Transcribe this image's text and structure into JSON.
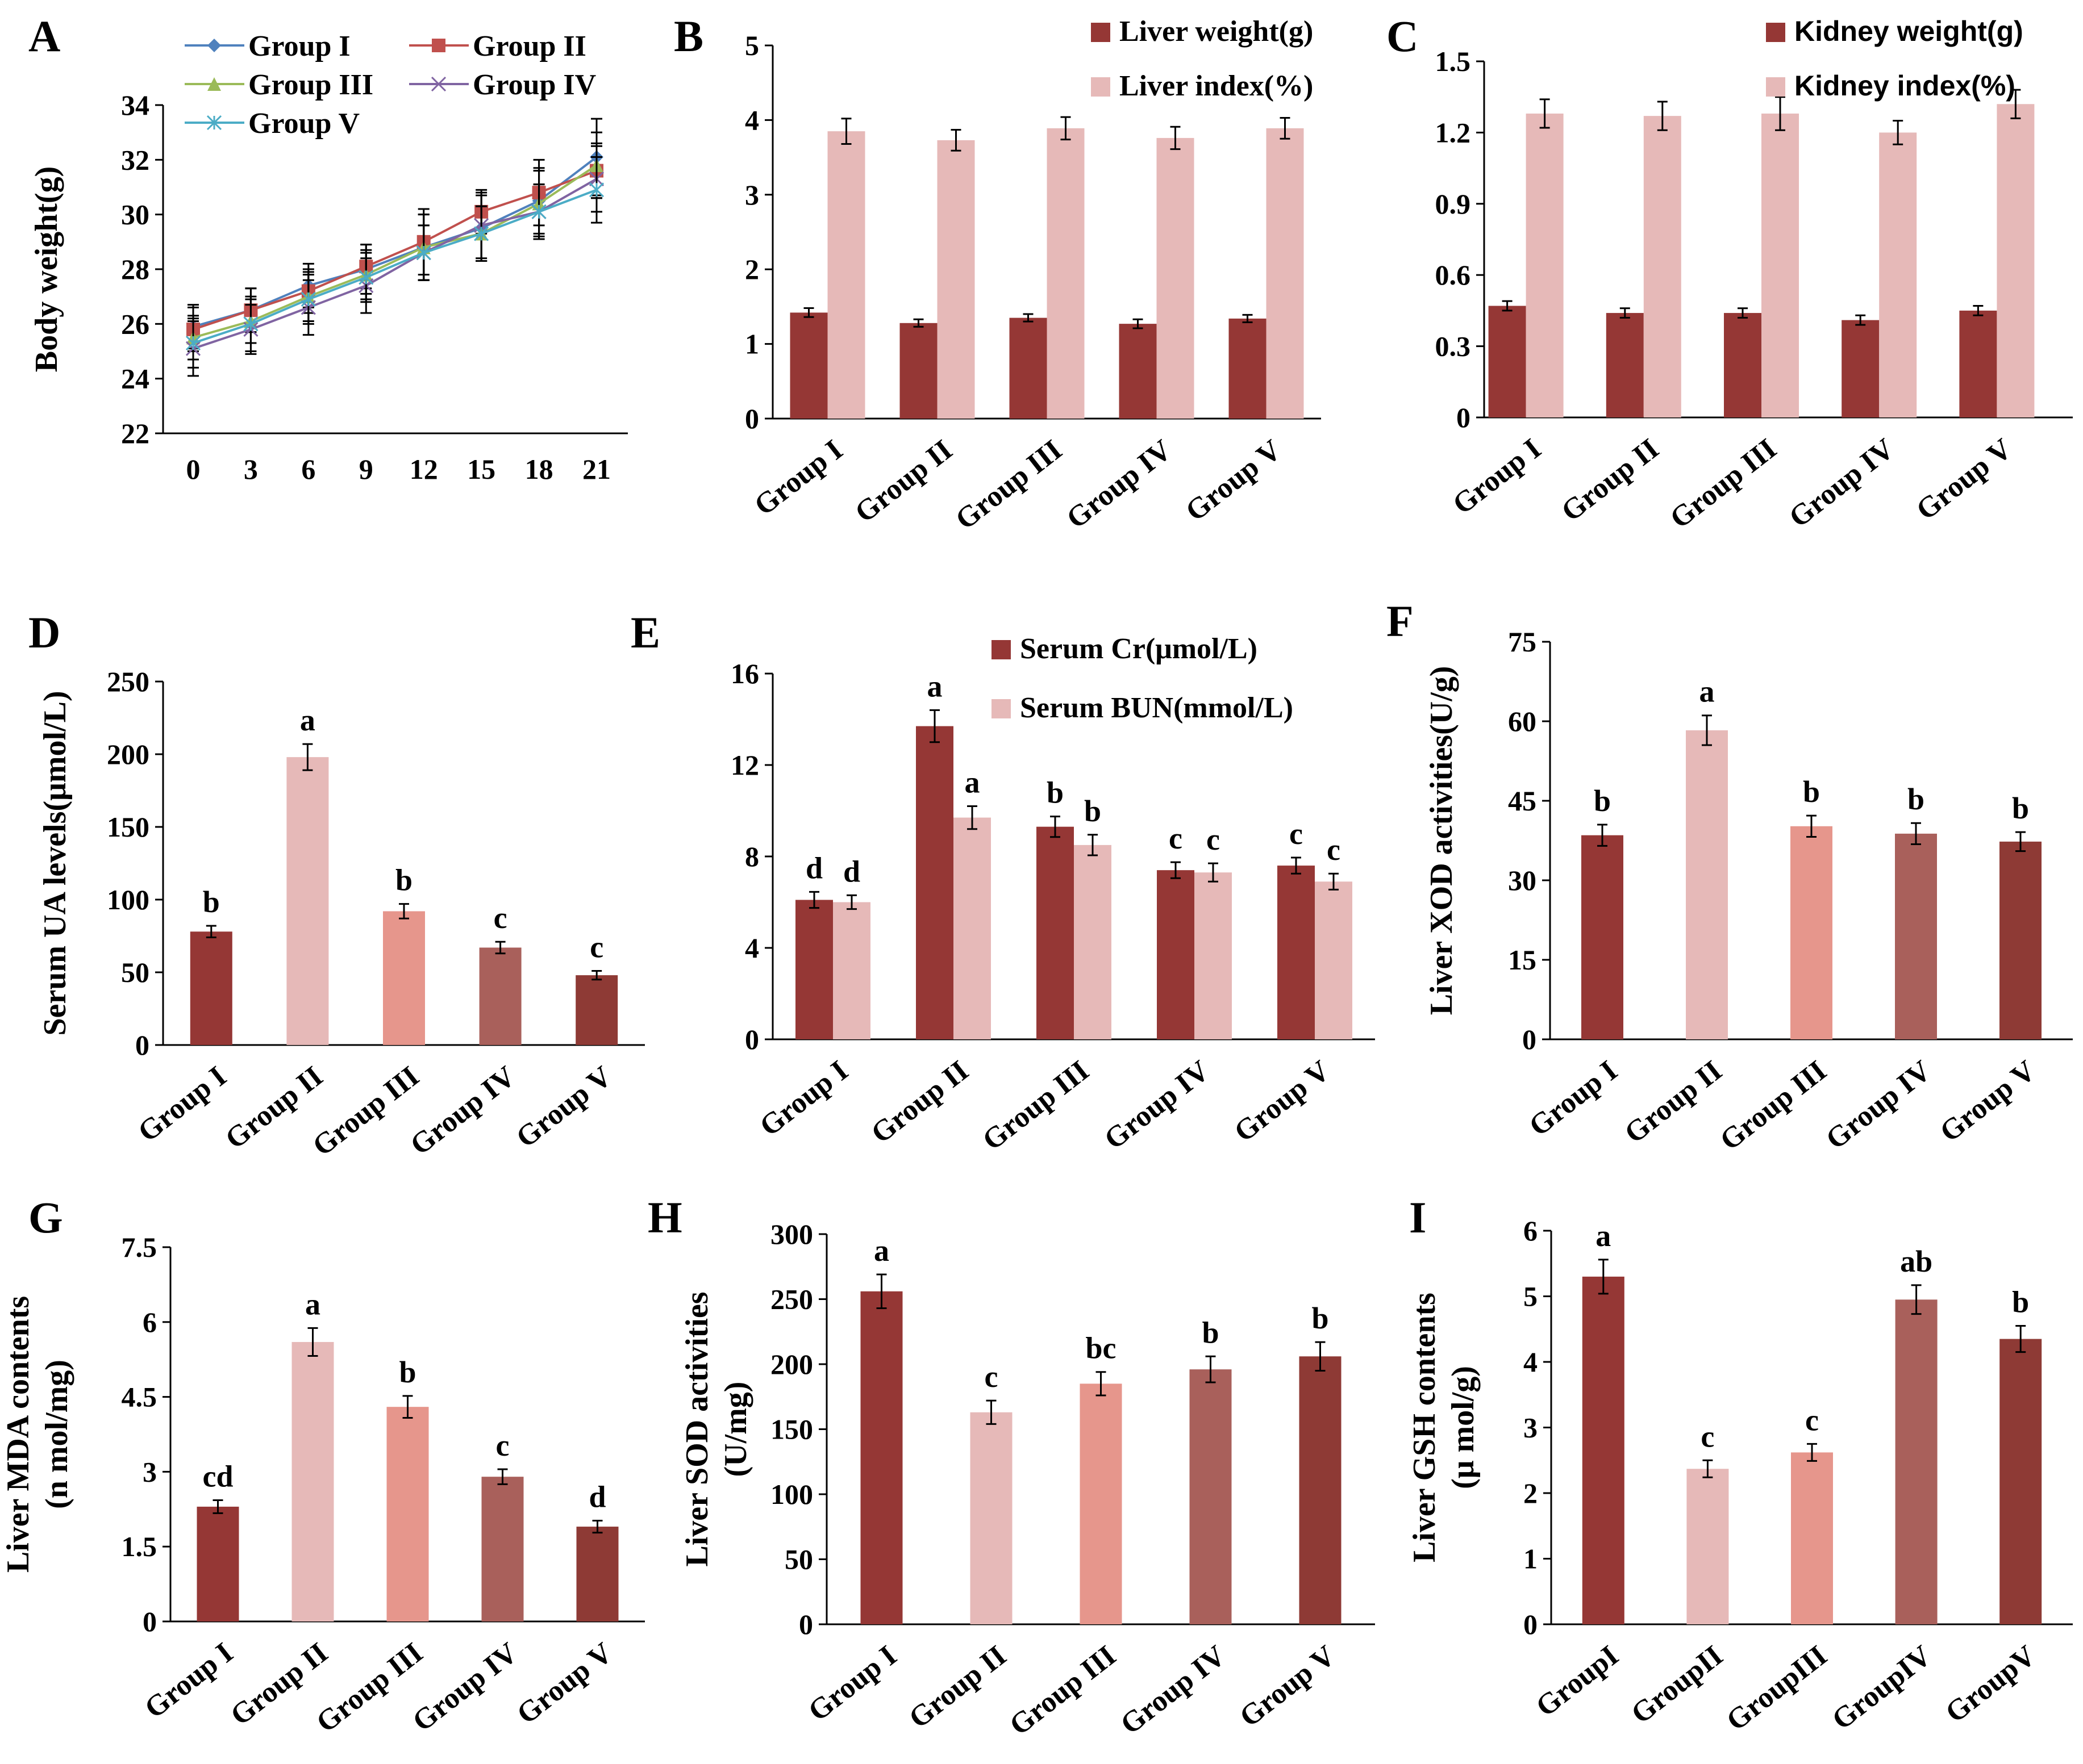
{
  "colors": {
    "axis": "#000000",
    "dark_red": "#953735",
    "light_pink": "#E6B9B8",
    "salmon": "#E6968C",
    "rose": "#A9605B",
    "brown": "#8E3A35",
    "line_g1": "#4F81BD",
    "line_g2": "#C0504D",
    "line_g3": "#9BBB59",
    "line_g4": "#8064A2",
    "line_g5": "#4BACC6"
  },
  "chart_data": [
    {
      "id": "A",
      "type": "line",
      "panel_label": "A",
      "ylabel": "Body weight(g)",
      "xlabel": "",
      "x": [
        0,
        3,
        6,
        9,
        12,
        15,
        18,
        21
      ],
      "ylim": [
        22,
        34
      ],
      "yticks": [
        22,
        24,
        26,
        28,
        30,
        32,
        34
      ],
      "legend": [
        "Group I",
        "Group II",
        "Group III",
        "Group IV",
        "Group V"
      ],
      "series": [
        {
          "name": "Group I",
          "marker": "diamond",
          "values": [
            25.9,
            26.5,
            27.4,
            28.0,
            28.8,
            29.5,
            30.5,
            32.1
          ],
          "errors": [
            0.8,
            0.8,
            0.8,
            0.9,
            1.2,
            1.2,
            1.2,
            1.4
          ]
        },
        {
          "name": "Group II",
          "marker": "square",
          "values": [
            25.8,
            26.5,
            27.2,
            28.1,
            29.0,
            30.1,
            30.8,
            31.6
          ],
          "errors": [
            0.8,
            0.8,
            0.8,
            0.8,
            1.2,
            0.8,
            1.2,
            1.0
          ]
        },
        {
          "name": "Group III",
          "marker": "triangle",
          "values": [
            25.5,
            26.1,
            27.0,
            27.8,
            28.8,
            29.3,
            30.4,
            31.8
          ],
          "errors": [
            0.8,
            0.8,
            0.9,
            0.9,
            1.2,
            1.0,
            1.2,
            1.2
          ]
        },
        {
          "name": "Group IV",
          "marker": "x",
          "values": [
            25.1,
            25.8,
            26.6,
            27.4,
            28.6,
            29.6,
            30.1,
            31.3
          ],
          "errors": [
            1.0,
            0.9,
            1.0,
            1.0,
            1.0,
            1.2,
            1.0,
            1.2
          ]
        },
        {
          "name": "Group V",
          "marker": "star",
          "values": [
            25.3,
            26.0,
            26.9,
            27.7,
            28.6,
            29.3,
            30.1,
            30.9
          ],
          "errors": [
            0.9,
            1.0,
            0.9,
            0.9,
            1.0,
            1.0,
            1.0,
            1.2
          ]
        }
      ]
    },
    {
      "id": "B",
      "type": "bar",
      "panel_label": "B",
      "ylabel": "",
      "categories": [
        "Group I",
        "Group II",
        "Group III",
        "Group IV",
        "Group V"
      ],
      "ylim": [
        0,
        5
      ],
      "yticks": [
        0,
        1,
        2,
        3,
        4,
        5
      ],
      "series": [
        {
          "name": "Liver weight(g)",
          "color": "#953735",
          "values": [
            1.42,
            1.28,
            1.35,
            1.27,
            1.34
          ],
          "errors": [
            0.06,
            0.05,
            0.05,
            0.06,
            0.05
          ]
        },
        {
          "name": "Liver index(%)",
          "color": "#E6B9B8",
          "values": [
            3.85,
            3.73,
            3.89,
            3.76,
            3.89
          ],
          "errors": [
            0.17,
            0.14,
            0.15,
            0.15,
            0.14
          ]
        }
      ]
    },
    {
      "id": "C",
      "type": "bar",
      "panel_label": "C",
      "ylabel": "",
      "categories": [
        "Group I",
        "Group II",
        "Group III",
        "Group IV",
        "Group V"
      ],
      "ylim": [
        0,
        1.5
      ],
      "yticks": [
        "0",
        "0.3",
        "0.6",
        "0.9",
        "1.2",
        "1.5"
      ],
      "series": [
        {
          "name": "Kidney weight(g)",
          "color": "#953735",
          "values": [
            0.47,
            0.44,
            0.44,
            0.41,
            0.45
          ],
          "errors": [
            0.02,
            0.02,
            0.02,
            0.02,
            0.02
          ]
        },
        {
          "name": "Kidney index(%)",
          "color": "#E6B9B8",
          "values": [
            1.28,
            1.27,
            1.28,
            1.2,
            1.32
          ],
          "errors": [
            0.06,
            0.06,
            0.07,
            0.05,
            0.06
          ]
        }
      ]
    },
    {
      "id": "D",
      "type": "bar",
      "panel_label": "D",
      "ylabel": "Serum UA levels(μmol/L)",
      "categories": [
        "Group I",
        "Group II",
        "Group III",
        "Group IV",
        "Group V"
      ],
      "ylim": [
        0,
        250
      ],
      "yticks": [
        0,
        50,
        100,
        150,
        200,
        250
      ],
      "series": [
        {
          "name": "Serum UA",
          "colors": [
            "#953735",
            "#E6B9B8",
            "#E6968C",
            "#A9605B",
            "#8E3A35"
          ],
          "values": [
            78,
            198,
            92,
            67,
            48
          ],
          "errors": [
            4,
            9,
            5,
            4,
            3
          ],
          "sig": [
            "b",
            "a",
            "b",
            "c",
            "c"
          ]
        }
      ]
    },
    {
      "id": "E",
      "type": "bar",
      "panel_label": "E",
      "ylabel": "",
      "categories": [
        "Group I",
        "Group II",
        "Group III",
        "Group IV",
        "Group V"
      ],
      "ylim": [
        0,
        16
      ],
      "yticks": [
        0,
        4,
        8,
        12,
        16
      ],
      "series": [
        {
          "name": "Serum Cr(μmol/L)",
          "color": "#953735",
          "values": [
            6.1,
            13.7,
            9.3,
            7.4,
            7.6
          ],
          "errors": [
            0.35,
            0.7,
            0.45,
            0.35,
            0.35
          ],
          "sig": [
            "d",
            "a",
            "b",
            "c",
            "c"
          ]
        },
        {
          "name": "Serum BUN(mmol/L)",
          "color": "#E6B9B8",
          "values": [
            6.0,
            9.7,
            8.5,
            7.3,
            6.9
          ],
          "errors": [
            0.3,
            0.5,
            0.45,
            0.4,
            0.35
          ],
          "sig": [
            "d",
            "a",
            "b",
            "c",
            "c"
          ]
        }
      ]
    },
    {
      "id": "F",
      "type": "bar",
      "panel_label": "F",
      "ylabel": "Liver XOD activities(U/g)",
      "categories": [
        "Group I",
        "Group II",
        "Group III",
        "Group IV",
        "Group V"
      ],
      "ylim": [
        0,
        75
      ],
      "yticks": [
        0,
        15,
        30,
        45,
        60,
        75
      ],
      "series": [
        {
          "name": "Liver XOD",
          "colors": [
            "#953735",
            "#E6B9B8",
            "#E6968C",
            "#A9605B",
            "#8E3A35"
          ],
          "values": [
            38.5,
            58.3,
            40.2,
            38.8,
            37.3
          ],
          "errors": [
            2.0,
            2.8,
            2.0,
            2.0,
            1.8
          ],
          "sig": [
            "b",
            "a",
            "b",
            "b",
            "b"
          ]
        }
      ]
    },
    {
      "id": "G",
      "type": "bar",
      "panel_label": "G",
      "ylabel": "Liver MDA contents",
      "ylabel2": "(n mol/mg)",
      "categories": [
        "Group I",
        "Group II",
        "Group III",
        "Group IV",
        "Group V"
      ],
      "ylim": [
        0,
        7.5
      ],
      "yticks": [
        "0",
        "1.5",
        "3",
        "4.5",
        "6",
        "7.5"
      ],
      "series": [
        {
          "name": "Liver MDA",
          "colors": [
            "#953735",
            "#E6B9B8",
            "#E6968C",
            "#A9605B",
            "#8E3A35"
          ],
          "values": [
            2.3,
            5.6,
            4.3,
            2.9,
            1.9
          ],
          "errors": [
            0.13,
            0.28,
            0.22,
            0.15,
            0.12
          ],
          "sig": [
            "cd",
            "a",
            "b",
            "c",
            "d"
          ]
        }
      ]
    },
    {
      "id": "H",
      "type": "bar",
      "panel_label": "H",
      "ylabel": "Liver SOD activities",
      "ylabel2": "(U/mg)",
      "categories": [
        "Group I",
        "Group II",
        "Group III",
        "Group IV",
        "Group V"
      ],
      "ylim": [
        0,
        300
      ],
      "yticks": [
        0,
        50,
        100,
        150,
        200,
        250,
        300
      ],
      "series": [
        {
          "name": "Liver SOD",
          "colors": [
            "#953735",
            "#E6B9B8",
            "#E6968C",
            "#A9605B",
            "#8E3A35"
          ],
          "values": [
            256,
            163,
            185,
            196,
            206
          ],
          "errors": [
            13,
            9,
            9,
            10,
            11
          ],
          "sig": [
            "a",
            "c",
            "bc",
            "b",
            "b"
          ]
        }
      ]
    },
    {
      "id": "I",
      "type": "bar",
      "panel_label": "I",
      "ylabel": "Liver GSH contents",
      "ylabel2": "(μ mol/g)",
      "categories": [
        "GroupI",
        "GroupII",
        "GroupIII",
        "GroupIV",
        "GroupV"
      ],
      "ylim": [
        0,
        6
      ],
      "yticks": [
        0,
        1,
        2,
        3,
        4,
        5,
        6
      ],
      "series": [
        {
          "name": "Liver GSH",
          "colors": [
            "#953735",
            "#E6B9B8",
            "#E6968C",
            "#A9605B",
            "#8E3A35"
          ],
          "values": [
            5.3,
            2.37,
            2.62,
            4.95,
            4.35
          ],
          "errors": [
            0.26,
            0.13,
            0.13,
            0.22,
            0.2
          ],
          "sig": [
            "a",
            "c",
            "c",
            "ab",
            "b"
          ]
        }
      ]
    }
  ]
}
